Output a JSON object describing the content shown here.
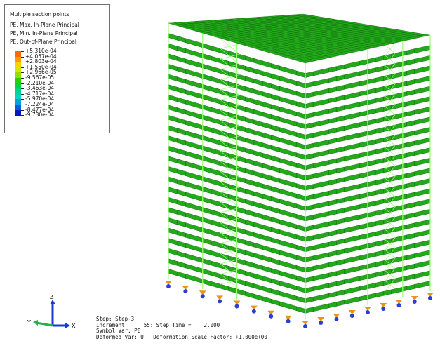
{
  "legend": {
    "lines": [
      "Multiple section points",
      "PE, Max. In-Plane Principal",
      "PE, Min. In-Plane Principal",
      "PE, Out-of-Plane Principal"
    ],
    "values": [
      "+5.310e-04",
      "+4.057e-04",
      "+2.803e-04",
      "+1.550e-04",
      "+2.966e-05",
      "-9.567e-05",
      "-2.210e-04",
      "-3.463e-04",
      "-4.717e-04",
      "-5.970e-04",
      "-7.224e-04",
      "-8.477e-04",
      "-9.730e-04"
    ],
    "colors": [
      "#ff6a00",
      "#ff9a00",
      "#ffd000",
      "#d7e600",
      "#8fe000",
      "#2fcc00",
      "#00d436",
      "#00d28c",
      "#00d4c8",
      "#00a2d8",
      "#0060d8",
      "#0018c0"
    ]
  },
  "triad": {
    "x": "X",
    "y": "Y",
    "z": "Z"
  },
  "info": {
    "step": "Step: Step-3",
    "increment": "Increment      55: Step Time =    2.000",
    "symbol": "Symbol Var: PE",
    "deformed": "Deformed Var: U   Deformation Scale Factor: +1.000e+00"
  },
  "colors": {
    "background": "#ffffff",
    "slab": "#22aa1a",
    "slab_grid": "#0d5a0a",
    "frame": "#9aff7a",
    "support": "#e8941a",
    "support_base": "#2a3fd0"
  }
}
